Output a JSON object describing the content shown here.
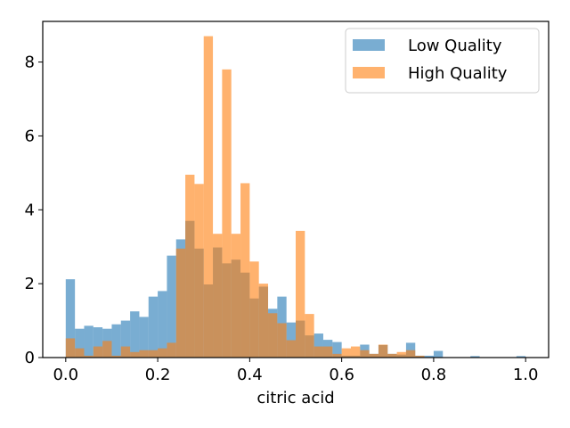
{
  "chart_data": {
    "type": "histogram",
    "xlabel": "citric acid",
    "ylabel": "",
    "xlim": [
      -0.05,
      1.05
    ],
    "ylim": [
      0,
      9.1
    ],
    "xticks": [
      0.0,
      0.2,
      0.4,
      0.6,
      0.8,
      1.0
    ],
    "xtick_labels": [
      "0.0",
      "0.2",
      "0.4",
      "0.6",
      "0.8",
      "1.0"
    ],
    "yticks": [
      0,
      2,
      4,
      6,
      8
    ],
    "ytick_labels": [
      "0",
      "2",
      "4",
      "6",
      "8"
    ],
    "bin_width": 0.02,
    "legend_position": "top-right",
    "series": [
      {
        "name": "Low Quality",
        "color": "#1f77b4",
        "alpha": 0.6,
        "bins": [
          [
            0.0,
            2.12
          ],
          [
            0.02,
            0.78
          ],
          [
            0.04,
            0.86
          ],
          [
            0.06,
            0.82
          ],
          [
            0.08,
            0.78
          ],
          [
            0.1,
            0.9
          ],
          [
            0.12,
            1.0
          ],
          [
            0.14,
            1.25
          ],
          [
            0.16,
            1.1
          ],
          [
            0.18,
            1.65
          ],
          [
            0.2,
            1.8
          ],
          [
            0.22,
            2.76
          ],
          [
            0.24,
            3.2
          ],
          [
            0.26,
            3.7
          ],
          [
            0.28,
            2.95
          ],
          [
            0.3,
            1.98
          ],
          [
            0.32,
            2.98
          ],
          [
            0.34,
            2.55
          ],
          [
            0.36,
            2.65
          ],
          [
            0.38,
            2.3
          ],
          [
            0.4,
            1.6
          ],
          [
            0.42,
            1.92
          ],
          [
            0.44,
            1.32
          ],
          [
            0.46,
            1.65
          ],
          [
            0.48,
            0.95
          ],
          [
            0.5,
            1.0
          ],
          [
            0.52,
            0.6
          ],
          [
            0.54,
            0.65
          ],
          [
            0.56,
            0.48
          ],
          [
            0.58,
            0.42
          ],
          [
            0.6,
            0.05
          ],
          [
            0.62,
            0.05
          ],
          [
            0.64,
            0.35
          ],
          [
            0.66,
            0.1
          ],
          [
            0.68,
            0.34
          ],
          [
            0.7,
            0.1
          ],
          [
            0.72,
            0.08
          ],
          [
            0.74,
            0.4
          ],
          [
            0.76,
            0.05
          ],
          [
            0.78,
            0.05
          ],
          [
            0.8,
            0.18
          ],
          [
            0.88,
            0.04
          ],
          [
            0.98,
            0.04
          ]
        ]
      },
      {
        "name": "High Quality",
        "color": "#ff7f0e",
        "alpha": 0.6,
        "bins": [
          [
            0.0,
            0.52
          ],
          [
            0.02,
            0.25
          ],
          [
            0.04,
            0.05
          ],
          [
            0.06,
            0.3
          ],
          [
            0.08,
            0.45
          ],
          [
            0.1,
            0.05
          ],
          [
            0.12,
            0.3
          ],
          [
            0.14,
            0.15
          ],
          [
            0.16,
            0.2
          ],
          [
            0.18,
            0.2
          ],
          [
            0.2,
            0.25
          ],
          [
            0.22,
            0.4
          ],
          [
            0.24,
            2.95
          ],
          [
            0.26,
            4.95
          ],
          [
            0.28,
            4.7
          ],
          [
            0.3,
            8.7
          ],
          [
            0.32,
            3.35
          ],
          [
            0.34,
            7.8
          ],
          [
            0.36,
            3.35
          ],
          [
            0.38,
            4.72
          ],
          [
            0.4,
            2.6
          ],
          [
            0.42,
            2.0
          ],
          [
            0.44,
            1.2
          ],
          [
            0.46,
            0.93
          ],
          [
            0.48,
            0.47
          ],
          [
            0.5,
            3.43
          ],
          [
            0.52,
            1.18
          ],
          [
            0.54,
            0.3
          ],
          [
            0.56,
            0.3
          ],
          [
            0.58,
            0.1
          ],
          [
            0.6,
            0.25
          ],
          [
            0.62,
            0.3
          ],
          [
            0.64,
            0.2
          ],
          [
            0.66,
            0.1
          ],
          [
            0.68,
            0.35
          ],
          [
            0.7,
            0.1
          ],
          [
            0.72,
            0.15
          ],
          [
            0.74,
            0.2
          ],
          [
            0.76,
            0.05
          ]
        ]
      }
    ]
  }
}
